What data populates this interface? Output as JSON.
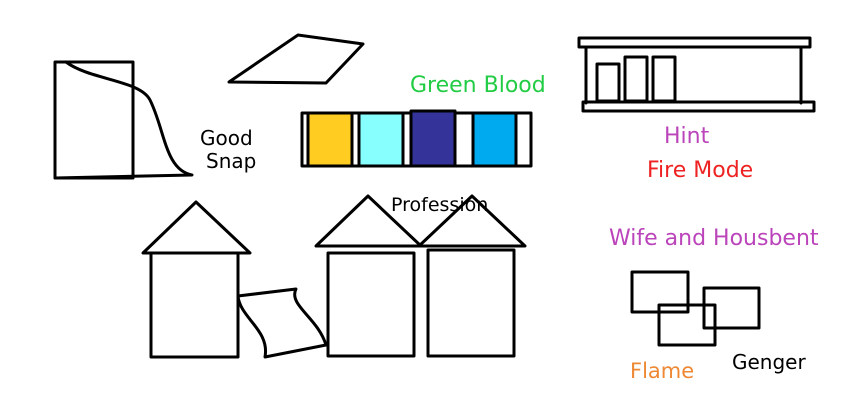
{
  "labels": {
    "good_snap_line1": "Good",
    "good_snap_line2": "Snap",
    "green_blood": "Green Blood",
    "profession": "Profession",
    "hint": "Hint",
    "fire_mode": "Fire Mode",
    "wife_and_housbent": "Wife and Housbent",
    "flame": "Flame",
    "genger": "Genger"
  },
  "colors": {
    "stroke": "#000000",
    "green_blood": "#22cc44",
    "hint": "#bb44bb",
    "fire_mode": "#ee2222",
    "wife_and_housbent": "#bb44bb",
    "flame": "#ee8833",
    "genger": "#000000",
    "swatch_yellow": "#ffcc22",
    "swatch_cyan": "#88ffff",
    "swatch_navy": "#333399",
    "swatch_blue": "#00aaee"
  }
}
